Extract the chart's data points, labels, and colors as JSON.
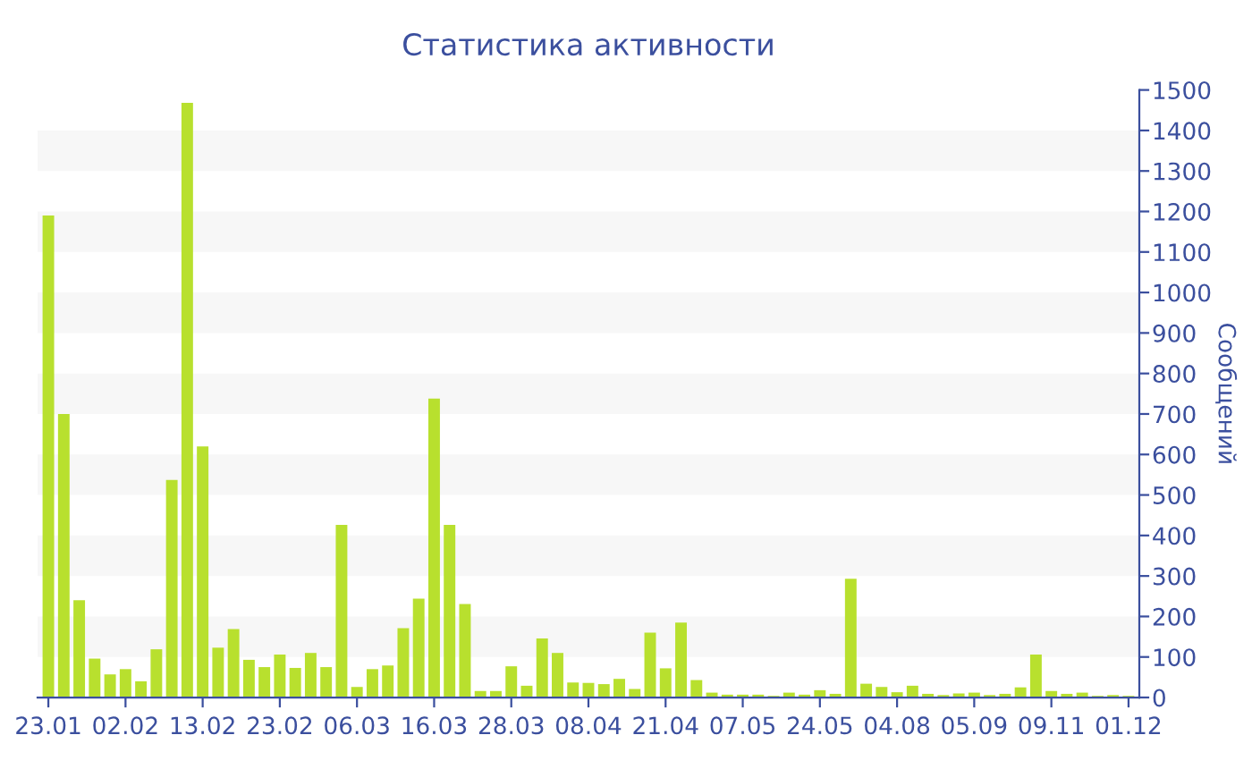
{
  "chart_data": {
    "type": "bar",
    "title": "Статистика активности",
    "ylabel": "Сообщений",
    "categories": [
      "23.01",
      null,
      null,
      null,
      null,
      "02.02",
      null,
      null,
      null,
      null,
      "13.02",
      null,
      null,
      null,
      null,
      "23.02",
      null,
      null,
      null,
      null,
      "06.03",
      null,
      null,
      null,
      null,
      "16.03",
      null,
      null,
      null,
      null,
      "28.03",
      null,
      null,
      null,
      null,
      "08.04",
      null,
      null,
      null,
      null,
      "21.04",
      null,
      null,
      null,
      null,
      "07.05",
      null,
      null,
      null,
      null,
      "24.05",
      null,
      null,
      null,
      null,
      "04.08",
      null,
      null,
      null,
      null,
      "05.09",
      null,
      null,
      null,
      null,
      "09.11",
      null,
      null,
      null,
      null,
      "01.12"
    ],
    "values": [
      1190,
      700,
      240,
      96,
      57,
      70,
      40,
      119,
      537,
      1468,
      620,
      123,
      169,
      93,
      75,
      106,
      73,
      110,
      75,
      426,
      26,
      70,
      79,
      171,
      244,
      738,
      426,
      231,
      16,
      16,
      77,
      29,
      146,
      110,
      37,
      36,
      33,
      46,
      21,
      160,
      72,
      185,
      43,
      12,
      7,
      7,
      7,
      4,
      12,
      7,
      18,
      9,
      293,
      34,
      26,
      13,
      29,
      9,
      6,
      10,
      12,
      6,
      9,
      25,
      106,
      16,
      9,
      12,
      4,
      6,
      4
    ],
    "color": "#b8e02e",
    "ylim": [
      0,
      1500
    ],
    "yticks": [
      0,
      100,
      200,
      300,
      400,
      500,
      600,
      700,
      800,
      900,
      1000,
      1100,
      1200,
      1300,
      1400,
      1500
    ],
    "bands": [
      {
        "axis": "y",
        "from": 100,
        "to": 200,
        "color": "#f7f7f7"
      },
      {
        "axis": "y",
        "from": 300,
        "to": 400,
        "color": "#f7f7f7"
      },
      {
        "axis": "y",
        "from": 500,
        "to": 600,
        "color": "#f7f7f7"
      },
      {
        "axis": "y",
        "from": 700,
        "to": 800,
        "color": "#f7f7f7"
      },
      {
        "axis": "y",
        "from": 900,
        "to": 1000,
        "color": "#f7f7f7"
      },
      {
        "axis": "y",
        "from": 1100,
        "to": 1200,
        "color": "#f7f7f7"
      },
      {
        "axis": "y",
        "from": 1300,
        "to": 1400,
        "color": "#f7f7f7"
      }
    ]
  }
}
